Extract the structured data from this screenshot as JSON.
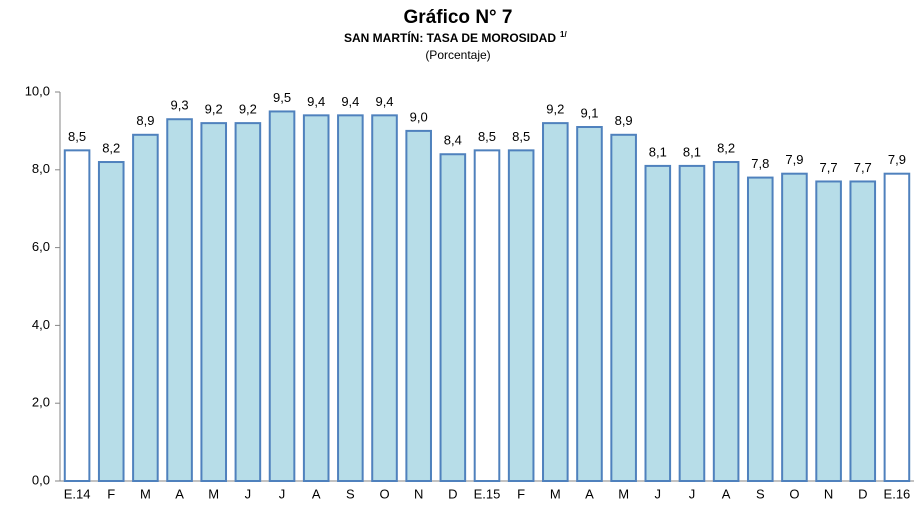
{
  "chart_data": {
    "type": "bar",
    "title": "Gráfico N° 7",
    "subtitle": "SAN MARTÍN: TASA DE MOROSIDAD",
    "subtitle_note": "1/",
    "unit_label": "(Porcentaje)",
    "categories": [
      "E.14",
      "F",
      "M",
      "A",
      "M",
      "J",
      "J",
      "A",
      "S",
      "O",
      "N",
      "D",
      "E.15",
      "F",
      "M",
      "A",
      "M",
      "J",
      "J",
      "A",
      "S",
      "O",
      "N",
      "D",
      "E.16"
    ],
    "values": [
      8.5,
      8.2,
      8.9,
      9.3,
      9.2,
      9.2,
      9.5,
      9.4,
      9.4,
      9.4,
      9.0,
      8.4,
      8.5,
      8.5,
      9.2,
      9.1,
      8.9,
      8.1,
      8.1,
      8.2,
      7.8,
      7.9,
      7.7,
      7.7,
      7.9
    ],
    "value_labels": [
      "8,5",
      "8,2",
      "8,9",
      "9,3",
      "9,2",
      "9,2",
      "9,5",
      "9,4",
      "9,4",
      "9,4",
      "9,0",
      "8,4",
      "8,5",
      "8,5",
      "9,2",
      "9,1",
      "8,9",
      "8,1",
      "8,1",
      "8,2",
      "7,8",
      "7,9",
      "7,7",
      "7,7",
      "7,9"
    ],
    "colors": [
      "#ffffff",
      "#b7dde8",
      "#b7dde8",
      "#b7dde8",
      "#b7dde8",
      "#b7dde8",
      "#b7dde8",
      "#b7dde8",
      "#b7dde8",
      "#b7dde8",
      "#b7dde8",
      "#b7dde8",
      "#ffffff",
      "#b7dde8",
      "#b7dde8",
      "#b7dde8",
      "#b7dde8",
      "#b7dde8",
      "#b7dde8",
      "#b7dde8",
      "#b7dde8",
      "#b7dde8",
      "#b7dde8",
      "#b7dde8",
      "#ffffff"
    ],
    "edge_color": "#4f81bd",
    "ylim": [
      0,
      10
    ],
    "yticks": [
      {
        "value": 0,
        "label": "0,0"
      },
      {
        "value": 2,
        "label": "2,0"
      },
      {
        "value": 4,
        "label": "4,0"
      },
      {
        "value": 6,
        "label": "6,0"
      },
      {
        "value": 8,
        "label": "8,0"
      },
      {
        "value": 10,
        "label": "10,0"
      }
    ],
    "grid": false
  }
}
